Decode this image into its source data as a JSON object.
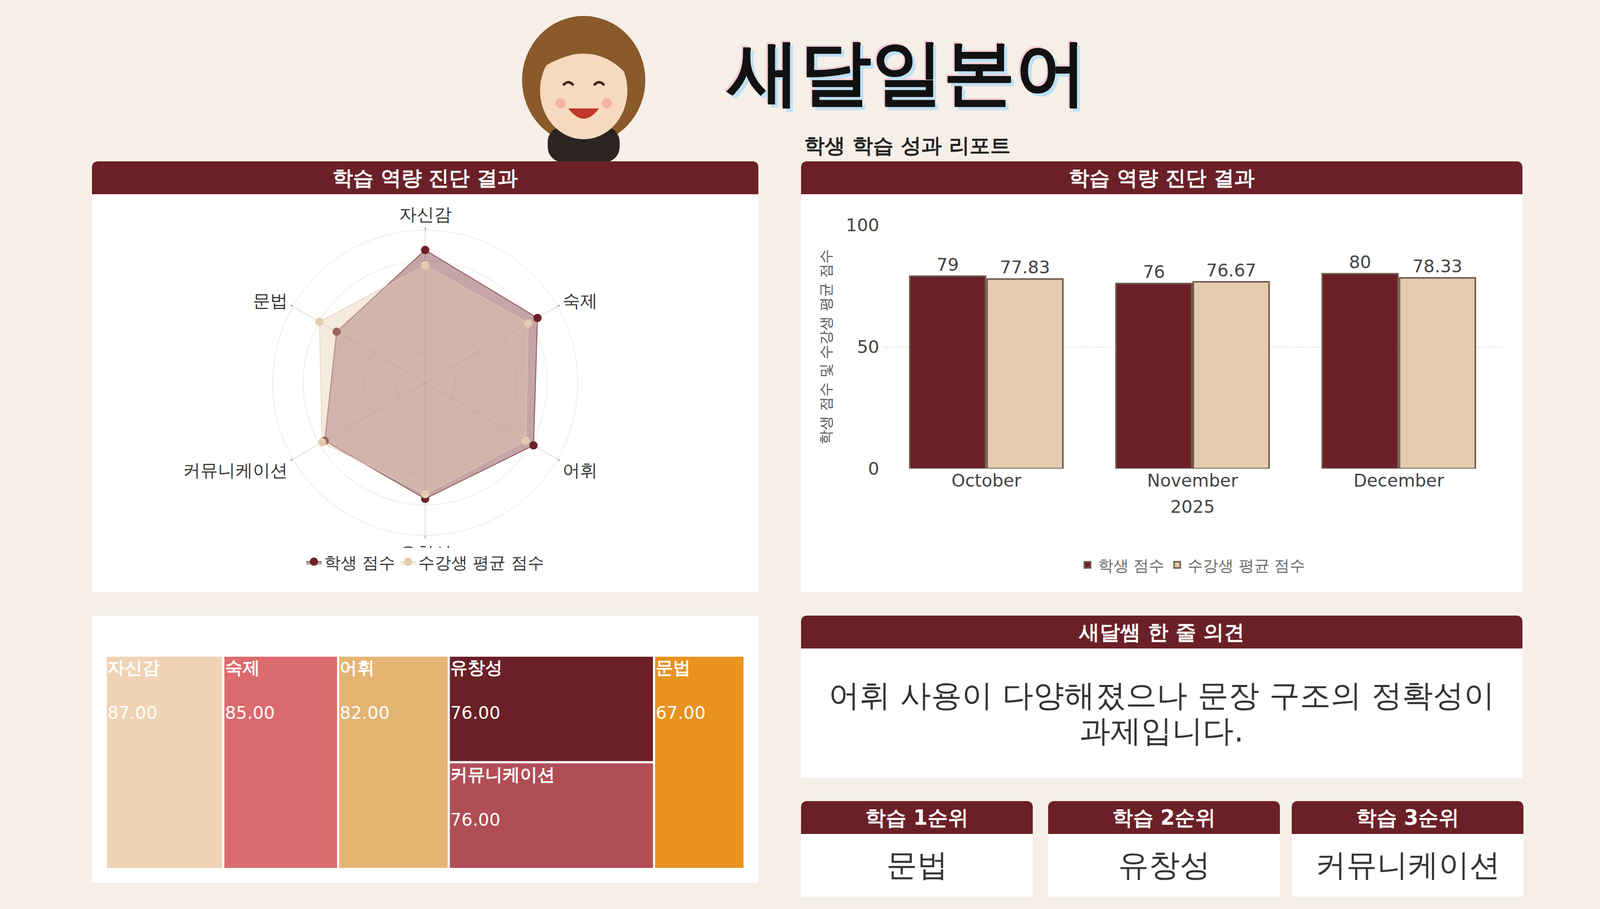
{
  "header": {
    "title": "새달일본어",
    "subtitle": "학생 학습 성과 리포트"
  },
  "chart_data": [
    {
      "type": "radar",
      "title": "학습 역량 진단 결과",
      "categories": [
        "자신감",
        "숙제",
        "어휘",
        "유창성",
        "커뮤니케이션",
        "문법"
      ],
      "series": [
        {
          "name": "학생 점수",
          "color": "#6b2027",
          "values": [
            87,
            85,
            82,
            76,
            76,
            67
          ]
        },
        {
          "name": "수강생 평균 점수",
          "color": "#e5cbb0",
          "values": [
            77,
            78,
            76,
            73,
            78,
            80
          ]
        }
      ],
      "ylim": [
        0,
        100
      ],
      "yticks": [
        20,
        40,
        60,
        80,
        100
      ],
      "tick_labels": "x",
      "grid": true,
      "legend": "bottom"
    },
    {
      "type": "bar",
      "title": "학습 역량 진단 결과",
      "x_label": "2025",
      "y_label": "학생 점수 및 수강생 평균 점수",
      "categories": [
        "October",
        "November",
        "December"
      ],
      "series": [
        {
          "name": "학생 점수",
          "color": "#6b2027",
          "values": [
            79,
            76,
            80
          ]
        },
        {
          "name": "수강생 평균 점수",
          "color": "#e5cbb0",
          "values": [
            77.83,
            76.67,
            78.33
          ]
        }
      ],
      "ylim": [
        0,
        100
      ],
      "yticks": [
        0,
        50,
        100
      ],
      "grid": true,
      "data_labels": true,
      "legend": "bottom"
    },
    {
      "type": "treemap",
      "categories": [
        "자신감",
        "숙제",
        "어휘",
        "유창성",
        "커뮤니케이션",
        "문법"
      ],
      "values": [
        87,
        85,
        82,
        76,
        76,
        67
      ],
      "value_labels": [
        "87.00",
        "85.00",
        "82.00",
        "76.00",
        "76.00",
        "67.00"
      ],
      "colors": [
        "#f0d2b4",
        "#db6b6e",
        "#e5b473",
        "#6b2027",
        "#b04e56",
        "#e8921f"
      ],
      "data_labels": true
    }
  ],
  "comment": {
    "title": "새달쌤 한 줄 의견",
    "text": "어휘 사용이 다양해졌으나 문장 구조의 정확성이 과제입니다."
  },
  "ranking": [
    {
      "title": "학습 1순위",
      "value": "문법"
    },
    {
      "title": "학습 2순위",
      "value": "유창성"
    },
    {
      "title": "학습 3순위",
      "value": "커뮤니케이션"
    }
  ]
}
